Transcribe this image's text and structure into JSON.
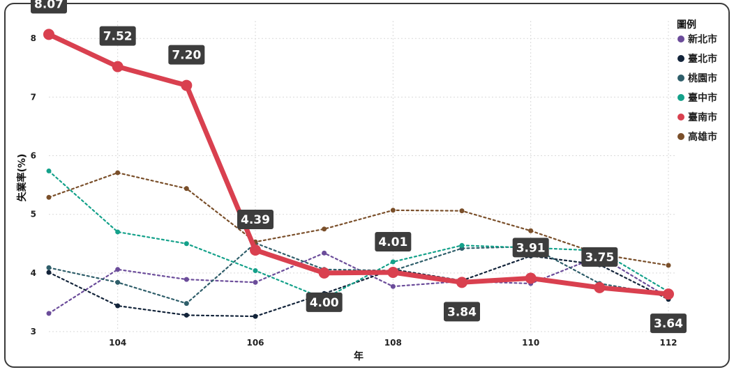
{
  "chart_data": {
    "type": "line",
    "xlabel": "年",
    "ylabel": "失業率(%)",
    "xlim": [
      103,
      112
    ],
    "ylim": [
      3,
      8.3
    ],
    "x_ticks": [
      "104",
      "106",
      "108",
      "110",
      "112"
    ],
    "y_ticks": [
      "3",
      "4",
      "5",
      "6",
      "7",
      "8"
    ],
    "grid": true,
    "legend_title": "圖例",
    "legend_position": "right",
    "x": [
      103,
      104,
      105,
      106,
      107,
      108,
      109,
      110,
      111,
      112
    ],
    "series": [
      {
        "name": "新北市",
        "color": "#6b4c9a",
        "style": "dotted",
        "values": [
          3.31,
          4.06,
          3.89,
          3.84,
          4.34,
          3.77,
          3.86,
          3.82,
          4.29,
          3.58
        ]
      },
      {
        "name": "臺北市",
        "color": "#13243a",
        "style": "dotted",
        "values": [
          4.01,
          3.44,
          3.28,
          3.26,
          3.65,
          4.06,
          3.87,
          4.29,
          4.14,
          3.55
        ]
      },
      {
        "name": "桃園市",
        "color": "#2f5e6a",
        "style": "dotted",
        "values": [
          4.09,
          3.84,
          3.48,
          4.51,
          4.06,
          4.04,
          4.42,
          4.45,
          3.82,
          3.62
        ]
      },
      {
        "name": "臺中市",
        "color": "#14a18a",
        "style": "dotted",
        "values": [
          5.74,
          4.7,
          4.5,
          4.04,
          3.56,
          4.19,
          4.47,
          4.43,
          4.38,
          3.68
        ]
      },
      {
        "name": "臺南市",
        "color": "#d9404f",
        "style": "solid",
        "values": [
          8.07,
          7.52,
          7.2,
          4.39,
          4.0,
          4.01,
          3.84,
          3.91,
          3.75,
          3.64
        ]
      },
      {
        "name": "高雄市",
        "color": "#7a4f2a",
        "style": "dotted",
        "values": [
          5.29,
          5.71,
          5.44,
          4.53,
          4.75,
          5.07,
          5.06,
          4.72,
          4.32,
          4.13
        ]
      }
    ],
    "data_labels": [
      {
        "x": 103,
        "text": "8.07",
        "pos": "above"
      },
      {
        "x": 104,
        "text": "7.52",
        "pos": "above"
      },
      {
        "x": 105,
        "text": "7.20",
        "pos": "above"
      },
      {
        "x": 106,
        "text": "4.39",
        "pos": "above"
      },
      {
        "x": 107,
        "text": "4.00",
        "pos": "below"
      },
      {
        "x": 108,
        "text": "4.01",
        "pos": "above"
      },
      {
        "x": 109,
        "text": "3.84",
        "pos": "below"
      },
      {
        "x": 110,
        "text": "3.91",
        "pos": "above"
      },
      {
        "x": 111,
        "text": "3.75",
        "pos": "above"
      },
      {
        "x": 112,
        "text": "3.64",
        "pos": "below"
      }
    ]
  }
}
